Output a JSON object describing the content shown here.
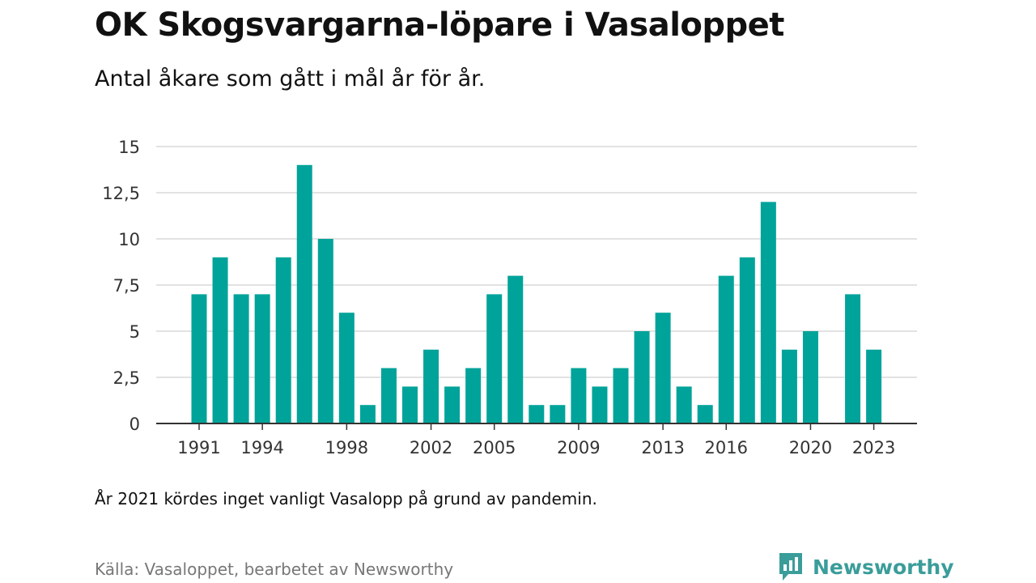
{
  "title": "OK Skogsvargarna-löpare i Vasaloppet",
  "subtitle": "Antal åkare som gått i mål år för år.",
  "note": "År 2021 kördes inget vanligt Vasalopp på grund av pandemin.",
  "source": "Källa: Vasaloppet, bearbetet av Newsworthy",
  "logo": {
    "text": "Newsworthy",
    "icon": "newsworthy-logo-icon",
    "color": "#3a9d9a"
  },
  "chart_data": {
    "type": "bar",
    "title": "",
    "xlabel": "",
    "ylabel": "",
    "bar_color": "#00a39a",
    "grid": true,
    "ylim": [
      0,
      15
    ],
    "y_ticks": [
      0,
      2.5,
      5,
      7.5,
      10,
      12.5,
      15
    ],
    "y_tick_labels": [
      "0",
      "2,5",
      "5",
      "7,5",
      "10",
      "12,5",
      "15"
    ],
    "x_tick_years": [
      1991,
      1994,
      1998,
      2002,
      2005,
      2009,
      2013,
      2016,
      2020,
      2023
    ],
    "x_tick_labels": [
      "1991",
      "1994",
      "1998",
      "2002",
      "2005",
      "2009",
      "2013",
      "2016",
      "2020",
      "2023"
    ],
    "years": [
      1991,
      1992,
      1993,
      1994,
      1995,
      1996,
      1997,
      1998,
      1999,
      2000,
      2001,
      2002,
      2003,
      2004,
      2005,
      2006,
      2007,
      2008,
      2009,
      2010,
      2011,
      2012,
      2013,
      2014,
      2015,
      2016,
      2017,
      2018,
      2019,
      2020,
      2021,
      2022,
      2023
    ],
    "values": [
      7,
      9,
      7,
      7,
      9,
      14,
      10,
      6,
      1,
      3,
      2,
      4,
      2,
      3,
      7,
      8,
      1,
      1,
      3,
      2,
      3,
      5,
      6,
      2,
      1,
      8,
      9,
      12,
      4,
      5,
      0,
      7,
      4
    ]
  }
}
